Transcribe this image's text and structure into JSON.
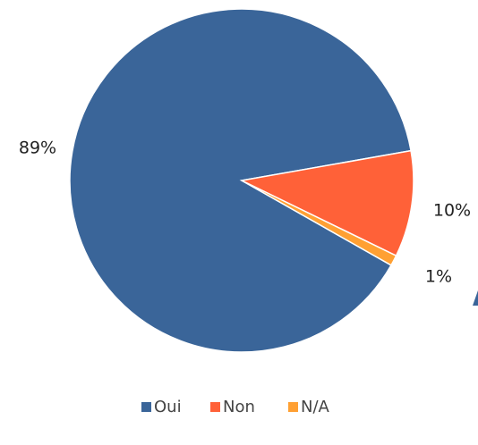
{
  "chart_data": {
    "type": "pie",
    "categories": [
      "Oui",
      "Non",
      "N/A"
    ],
    "values": [
      89,
      10,
      1
    ],
    "value_labels": [
      "89%",
      "10%",
      "1%"
    ],
    "colors": [
      "#3a6599",
      "#ff6138",
      "#ffa033"
    ],
    "legend": "bottom"
  }
}
